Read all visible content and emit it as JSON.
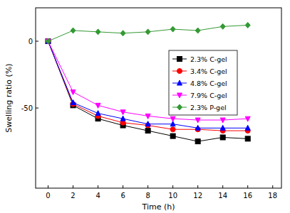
{
  "chart_data": {
    "type": "line",
    "x_label": "Time (h)",
    "y_label": "Swelling ratio (%)",
    "x": [
      0,
      2,
      4,
      6,
      8,
      10,
      12,
      14,
      16
    ],
    "series": [
      {
        "name": "2.3% C-gel",
        "color": "#000000",
        "marker": "square",
        "values": [
          0,
          -48,
          -58,
          -63,
          -67,
          -71,
          -75,
          -72,
          -73
        ]
      },
      {
        "name": "3.4% C-gel",
        "color": "#ff0000",
        "marker": "circle",
        "values": [
          0,
          -47,
          -56,
          -61,
          -63,
          -66,
          -66,
          -67,
          -67
        ]
      },
      {
        "name": "4.8% C-gel",
        "color": "#0000ff",
        "marker": "triangle-up",
        "values": [
          0,
          -46,
          -54,
          -58,
          -62,
          -62,
          -65,
          -65,
          -65
        ]
      },
      {
        "name": "7.9% C-gel",
        "color": "#ff00ff",
        "marker": "triangle-down",
        "values": [
          0,
          -38,
          -48,
          -53,
          -56,
          -58,
          -59,
          -59,
          -58
        ]
      },
      {
        "name": "2.3% P-gel",
        "color": "#339933",
        "marker": "diamond",
        "values": [
          0,
          8,
          7,
          6,
          7,
          9,
          8,
          11,
          12
        ]
      }
    ],
    "xlim": [
      -1,
      18.7
    ],
    "xticks": [
      0,
      2,
      4,
      6,
      8,
      10,
      12,
      14,
      16,
      18
    ],
    "ylim": [
      -110,
      25
    ],
    "yticks": [
      -50,
      0
    ],
    "grid": false,
    "legend": "upper right"
  }
}
